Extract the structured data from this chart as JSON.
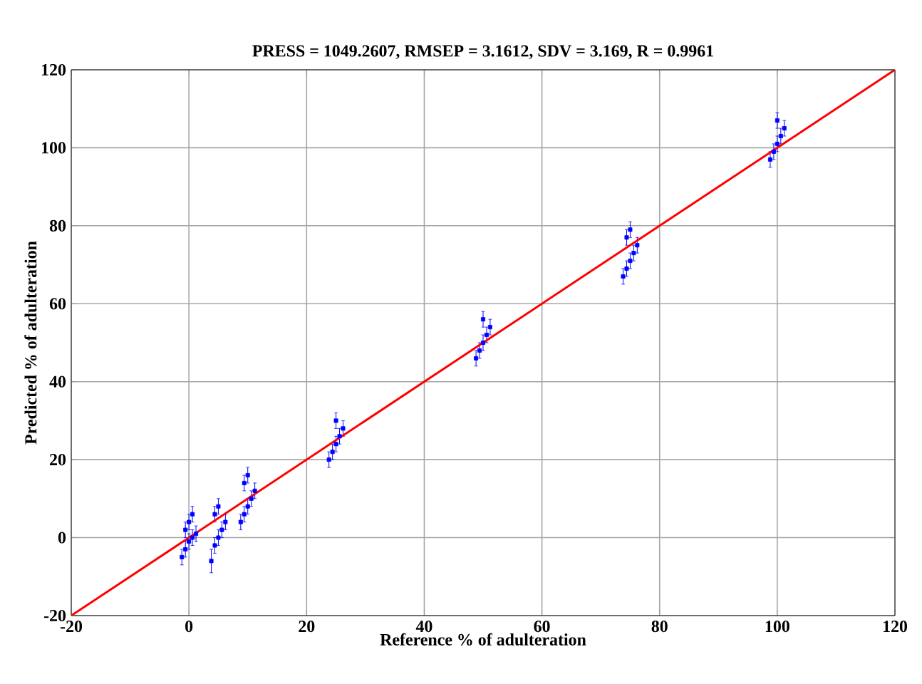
{
  "chart_data": {
    "type": "scatter",
    "title": "PRESS = 1049.2607, RMSEP = 3.1612, SDV = 3.169, R = 0.9961",
    "xlabel": "Reference % of adulteration",
    "ylabel": "Predicted % of adulteration",
    "xlim": [
      -20,
      120
    ],
    "ylim": [
      -20,
      120
    ],
    "xticks": [
      -20,
      0,
      20,
      40,
      60,
      80,
      100,
      120
    ],
    "yticks": [
      -20,
      0,
      20,
      40,
      60,
      80,
      100,
      120
    ],
    "grid": true,
    "marker": "square",
    "series": [
      {
        "type": "scatter",
        "color": "#0000ff",
        "x": [
          -1.2,
          -0.6,
          0,
          0.6,
          1.2,
          -0.6,
          0,
          0.6,
          3.8,
          4.4,
          5,
          5.6,
          6.2,
          4.4,
          5,
          8.8,
          9.4,
          10,
          10.6,
          11.2,
          9.4,
          10,
          23.8,
          24.4,
          25,
          25.6,
          26.2,
          25,
          48.8,
          49.4,
          50,
          50.6,
          51.2,
          50,
          73.8,
          74.4,
          75,
          75.6,
          76.2,
          74.4,
          75,
          98.8,
          99.4,
          100,
          100.6,
          101.2,
          100
        ],
        "values": [
          -5,
          -3,
          -1,
          0,
          1,
          2,
          4,
          6,
          -6,
          -2,
          0,
          2,
          4,
          6,
          8,
          4,
          6,
          8,
          10,
          12,
          14,
          16,
          20,
          22,
          24,
          26,
          28,
          30,
          46,
          48,
          50,
          52,
          54,
          56,
          67,
          69,
          71,
          73,
          75,
          77,
          79,
          97,
          99,
          101,
          103,
          105,
          107
        ],
        "errors": [
          2,
          2,
          2,
          2,
          2,
          2,
          2,
          2,
          3,
          2,
          2,
          2,
          2,
          2,
          2,
          2,
          2,
          2,
          2,
          2,
          2,
          2,
          2,
          2,
          2,
          2,
          2,
          2,
          2,
          2,
          2,
          2,
          2,
          2,
          2,
          2,
          2,
          2,
          2,
          2,
          2,
          2,
          2,
          2,
          2,
          2,
          2
        ]
      },
      {
        "type": "line",
        "color": "#ff0000",
        "marker": "none",
        "x": [
          -20,
          120
        ],
        "values": [
          -20,
          120
        ]
      }
    ]
  }
}
